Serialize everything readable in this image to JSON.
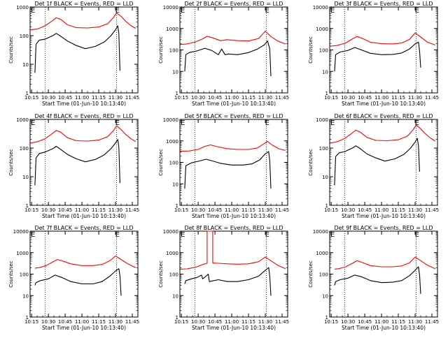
{
  "chart_data": [
    {
      "type": "line",
      "title": "Det 1f BLACK = Events, RED = LLD",
      "ylabel": "Counts/sec",
      "xlabel": "Start Time (01-Jun-10 10:13:40)",
      "yscale": "log",
      "ylim": [
        1,
        1000
      ],
      "y_ticks": [
        "1",
        "10",
        "100",
        "1000"
      ],
      "x_ticks": [
        "10:15",
        "10:30",
        "10:45",
        "11:00",
        "11:15",
        "11:30",
        "11:45"
      ],
      "flag_markers": [
        "E",
        "E"
      ],
      "series": [
        {
          "color": "#ff0000",
          "x": [
            "10:14",
            "10:20",
            "10:27",
            "10:34",
            "10:37",
            "10:41",
            "10:47",
            "10:55",
            "11:05",
            "11:15",
            "11:23",
            "11:28",
            "11:31",
            "11:35",
            "11:39",
            "11:44",
            "11:48"
          ],
          "y": [
            160,
            170,
            220,
            340,
            420,
            370,
            240,
            190,
            185,
            200,
            260,
            420,
            620,
            470,
            320,
            220,
            180
          ]
        },
        {
          "color": "#000000",
          "x": [
            "10:18",
            "10:19",
            "10:22",
            "10:27",
            "10:34",
            "10:37",
            "10:41",
            "10:47",
            "10:55",
            "11:03",
            "11:12",
            "11:20",
            "11:26",
            "11:30",
            "11:32",
            "11:33",
            "11:34"
          ],
          "y": [
            5,
            50,
            70,
            75,
            100,
            120,
            95,
            65,
            45,
            35,
            42,
            60,
            100,
            160,
            220,
            120,
            6
          ]
        }
      ]
    },
    {
      "type": "line",
      "title": "Det 2f BLACK = Events, RED = LLD",
      "ylabel": "Counts/sec",
      "xlabel": "Start Time (01-Jun-10 10:13:40)",
      "yscale": "log",
      "ylim": [
        1,
        10000
      ],
      "y_ticks": [
        "1",
        "10",
        "100",
        "1000",
        "10000"
      ],
      "x_ticks": [
        "10:15",
        "10:30",
        "10:45",
        "11:00",
        "11:15",
        "11:30",
        "11:45"
      ],
      "flag_markers": [
        "E",
        "E"
      ],
      "series": [
        {
          "color": "#ff0000",
          "x": [
            "10:14",
            "10:20",
            "10:27",
            "10:34",
            "10:38",
            "10:42",
            "10:50",
            "10:56",
            "11:05",
            "11:15",
            "11:24",
            "11:30",
            "11:35",
            "11:41",
            "11:48"
          ],
          "y": [
            180,
            190,
            230,
            330,
            430,
            380,
            270,
            300,
            270,
            260,
            340,
            750,
            420,
            260,
            190
          ]
        },
        {
          "color": "#000000",
          "x": [
            "10:18",
            "10:19",
            "10:22",
            "10:29",
            "10:36",
            "10:42",
            "10:48",
            "10:51",
            "10:54",
            "10:57",
            "11:05",
            "11:15",
            "11:23",
            "11:29",
            "11:32",
            "11:34",
            "11:35"
          ],
          "y": [
            10,
            60,
            75,
            90,
            120,
            95,
            60,
            110,
            60,
            65,
            60,
            75,
            110,
            170,
            260,
            110,
            6
          ]
        }
      ]
    },
    {
      "type": "line",
      "title": "Det 3f BLACK = Events, RED = LLD",
      "ylabel": "Counts/sec",
      "xlabel": "Start Time (01-Jun-10 10:13:40)",
      "yscale": "log",
      "ylim": [
        1,
        10000
      ],
      "y_ticks": [
        "1",
        "10",
        "100",
        "1000",
        "10000"
      ],
      "x_ticks": [
        "10:15",
        "10:30",
        "10:45",
        "11:00",
        "11:15",
        "11:30",
        "11:45"
      ],
      "flag_markers": [
        "E",
        "E"
      ],
      "series": [
        {
          "color": "#ff0000",
          "x": [
            "10:14",
            "10:20",
            "10:28",
            "10:34",
            "10:38",
            "10:42",
            "10:50",
            "11:00",
            "11:10",
            "11:18",
            "11:25",
            "11:30",
            "11:35",
            "11:41",
            "11:48"
          ],
          "y": [
            150,
            160,
            210,
            330,
            420,
            360,
            230,
            195,
            190,
            210,
            310,
            620,
            400,
            230,
            170
          ]
        },
        {
          "color": "#000000",
          "x": [
            "10:18",
            "10:19",
            "10:23",
            "10:30",
            "10:36",
            "10:42",
            "10:50",
            "11:00",
            "11:10",
            "11:18",
            "11:25",
            "11:30",
            "11:33",
            "11:34",
            "11:35"
          ],
          "y": [
            10,
            60,
            80,
            95,
            130,
            100,
            70,
            60,
            62,
            72,
            110,
            190,
            230,
            90,
            15
          ]
        }
      ]
    },
    {
      "type": "line",
      "title": "Det 4f BLACK = Events, RED = LLD",
      "ylabel": "Counts/sec",
      "xlabel": "Start Time (01-Jun-10 10:13:40)",
      "yscale": "log",
      "ylim": [
        1,
        1000
      ],
      "y_ticks": [
        "1",
        "10",
        "100",
        "1000"
      ],
      "x_ticks": [
        "10:15",
        "10:30",
        "10:45",
        "11:00",
        "11:15",
        "11:30",
        "11:45"
      ],
      "flag_markers": [
        "E",
        "E"
      ],
      "series": [
        {
          "color": "#ff0000",
          "x": [
            "10:14",
            "10:20",
            "10:27",
            "10:34",
            "10:37",
            "10:41",
            "10:47",
            "10:55",
            "11:05",
            "11:15",
            "11:23",
            "11:28",
            "11:31",
            "11:35",
            "11:39",
            "11:44",
            "11:48"
          ],
          "y": [
            150,
            165,
            210,
            330,
            410,
            360,
            230,
            180,
            175,
            190,
            250,
            400,
            600,
            440,
            300,
            210,
            170
          ]
        },
        {
          "color": "#000000",
          "x": [
            "10:18",
            "10:19",
            "10:22",
            "10:27",
            "10:34",
            "10:37",
            "10:41",
            "10:47",
            "10:55",
            "11:03",
            "11:12",
            "11:20",
            "11:26",
            "11:30",
            "11:32",
            "11:33",
            "11:34"
          ],
          "y": [
            5,
            45,
            65,
            72,
            95,
            115,
            90,
            60,
            42,
            33,
            40,
            58,
            95,
            150,
            200,
            110,
            6
          ]
        }
      ]
    },
    {
      "type": "line",
      "title": "Det 5f BLACK = Events, RED = LLD",
      "ylabel": "Counts/sec",
      "xlabel": "Start Time (01-Jun-10 10:13:40)",
      "yscale": "log",
      "ylim": [
        1,
        10000
      ],
      "y_ticks": [
        "1",
        "10",
        "100",
        "1000",
        "10000"
      ],
      "x_ticks": [
        "10:15",
        "10:30",
        "10:45",
        "11:00",
        "11:15",
        "11:30",
        "11:45"
      ],
      "flag_markers": [
        "E",
        "E"
      ],
      "series": [
        {
          "color": "#ff0000",
          "x": [
            "10:14",
            "10:22",
            "10:30",
            "10:36",
            "10:41",
            "10:47",
            "10:55",
            "11:05",
            "11:15",
            "11:23",
            "11:29",
            "11:32",
            "11:36",
            "11:42",
            "11:48"
          ],
          "y": [
            330,
            340,
            400,
            560,
            650,
            540,
            440,
            400,
            400,
            470,
            750,
            950,
            650,
            430,
            360
          ]
        },
        {
          "color": "#000000",
          "x": [
            "10:18",
            "10:19",
            "10:24",
            "10:31",
            "10:37",
            "10:42",
            "10:50",
            "11:00",
            "11:10",
            "11:18",
            "11:25",
            "11:30",
            "11:33",
            "11:34",
            "11:35"
          ],
          "y": [
            6,
            70,
            95,
            115,
            140,
            120,
            90,
            75,
            75,
            85,
            130,
            250,
            320,
            120,
            6
          ]
        }
      ]
    },
    {
      "type": "line",
      "title": "Det 6f BLACK = Events, RED = LLD",
      "ylabel": "Counts/sec",
      "xlabel": "Start Time (01-Jun-10 10:13:40)",
      "yscale": "log",
      "ylim": [
        1,
        1000
      ],
      "y_ticks": [
        "1",
        "10",
        "100",
        "1000"
      ],
      "x_ticks": [
        "10:15",
        "10:30",
        "10:45",
        "11:00",
        "11:15",
        "11:30",
        "11:45"
      ],
      "flag_markers": [
        "E",
        "E"
      ],
      "series": [
        {
          "color": "#ff0000",
          "x": [
            "10:14",
            "10:20",
            "10:27",
            "10:34",
            "10:37",
            "10:41",
            "10:47",
            "10:55",
            "11:05",
            "11:15",
            "11:23",
            "11:28",
            "11:31",
            "11:35",
            "11:39",
            "11:44",
            "11:48"
          ],
          "y": [
            150,
            165,
            215,
            340,
            420,
            360,
            235,
            185,
            180,
            195,
            260,
            420,
            640,
            470,
            320,
            220,
            175
          ]
        },
        {
          "color": "#000000",
          "x": [
            "10:18",
            "10:19",
            "10:22",
            "10:27",
            "10:34",
            "10:37",
            "10:41",
            "10:47",
            "10:55",
            "11:03",
            "11:12",
            "11:20",
            "11:26",
            "11:30",
            "11:32",
            "11:33",
            "11:34"
          ],
          "y": [
            5,
            50,
            68,
            75,
            100,
            120,
            95,
            62,
            45,
            35,
            42,
            60,
            100,
            160,
            220,
            120,
            15
          ]
        }
      ]
    },
    {
      "type": "line",
      "title": "Det 7f BLACK = Events, RED = LLD",
      "ylabel": "Counts/sec",
      "xlabel": "Start Time (01-Jun-10 10:13:40)",
      "yscale": "log",
      "ylim": [
        1,
        10000
      ],
      "y_ticks": [
        "1",
        "10",
        "100",
        "1000",
        "10000"
      ],
      "x_ticks": [
        "10:15",
        "10:30",
        "10:45",
        "11:00",
        "11:15",
        "11:30",
        "11:45"
      ],
      "flag_markers": [
        "E",
        "E"
      ],
      "series": [
        {
          "color": "#ff0000",
          "x": [
            "10:18",
            "10:22",
            "10:28",
            "10:34",
            "10:38",
            "10:42",
            "10:50",
            "11:00",
            "11:10",
            "11:18",
            "11:25",
            "11:30",
            "11:35",
            "11:41",
            "11:48"
          ],
          "y": [
            190,
            200,
            250,
            370,
            480,
            420,
            300,
            250,
            250,
            280,
            420,
            700,
            480,
            300,
            200
          ]
        },
        {
          "color": "#000000",
          "x": [
            "10:18",
            "10:19",
            "10:23",
            "10:30",
            "10:36",
            "10:42",
            "10:50",
            "11:00",
            "11:10",
            "11:18",
            "11:25",
            "11:30",
            "11:33",
            "11:34",
            "11:35"
          ],
          "y": [
            30,
            40,
            50,
            60,
            90,
            70,
            45,
            35,
            35,
            45,
            80,
            140,
            180,
            80,
            10
          ]
        }
      ]
    },
    {
      "type": "line",
      "title": "Det 8f BLACK = Events, RED = LLD",
      "ylabel": "Counts/sec",
      "xlabel": "Start Time (01-Jun-10 10:13:40)",
      "yscale": "log",
      "ylim": [
        1,
        10000
      ],
      "y_ticks": [
        "1",
        "10",
        "100",
        "1000",
        "10000"
      ],
      "x_ticks": [
        "10:15",
        "10:30",
        "10:45",
        "11:00",
        "11:15",
        "11:30",
        "11:45"
      ],
      "flag_markers": [
        "E",
        "E"
      ],
      "series": [
        {
          "color": "#ff0000",
          "x": [
            "10:14",
            "10:20",
            "10:26",
            "10:30",
            "10:34",
            "10:38",
            "10:38",
            "10:43",
            "10:43",
            "10:48",
            "10:56",
            "11:05",
            "11:15",
            "11:24",
            "11:30",
            "11:35",
            "11:41",
            "11:48"
          ],
          "y": [
            170,
            175,
            200,
            230,
            280,
            320,
            10000,
            10000,
            330,
            320,
            300,
            290,
            300,
            380,
            620,
            420,
            260,
            180
          ]
        },
        {
          "color": "#000000",
          "x": [
            "10:18",
            "10:19",
            "10:24",
            "10:29",
            "10:33",
            "10:34",
            "10:37",
            "10:39",
            "10:40",
            "10:48",
            "10:56",
            "11:05",
            "11:15",
            "11:24",
            "11:30",
            "11:33",
            "11:34",
            "11:35"
          ],
          "y": [
            35,
            50,
            60,
            70,
            90,
            60,
            80,
            100,
            45,
            55,
            45,
            45,
            55,
            80,
            150,
            200,
            80,
            10
          ]
        }
      ]
    },
    {
      "type": "line",
      "title": "Det 9f BLACK = Events, RED = LLD",
      "ylabel": "Counts/sec",
      "xlabel": "Start Time (01-Jun-10 10:13:40)",
      "yscale": "log",
      "ylim": [
        1,
        10000
      ],
      "y_ticks": [
        "1",
        "10",
        "100",
        "1000",
        "10000"
      ],
      "x_ticks": [
        "10:15",
        "10:30",
        "10:45",
        "11:00",
        "11:15",
        "11:30",
        "11:45"
      ],
      "flag_markers": [
        "E",
        "E"
      ],
      "series": [
        {
          "color": "#ff0000",
          "x": [
            "10:18",
            "10:22",
            "10:28",
            "10:34",
            "10:38",
            "10:42",
            "10:50",
            "11:00",
            "11:10",
            "11:18",
            "11:25",
            "11:30",
            "11:35",
            "11:41",
            "11:48"
          ],
          "y": [
            170,
            180,
            220,
            320,
            420,
            360,
            250,
            220,
            220,
            240,
            340,
            620,
            420,
            260,
            180
          ]
        },
        {
          "color": "#000000",
          "x": [
            "10:18",
            "10:19",
            "10:23",
            "10:30",
            "10:36",
            "10:42",
            "10:50",
            "11:00",
            "11:10",
            "11:18",
            "11:25",
            "11:30",
            "11:33",
            "11:34",
            "11:35"
          ],
          "y": [
            30,
            45,
            55,
            65,
            90,
            75,
            50,
            40,
            42,
            50,
            85,
            150,
            220,
            90,
            12
          ]
        }
      ]
    }
  ]
}
